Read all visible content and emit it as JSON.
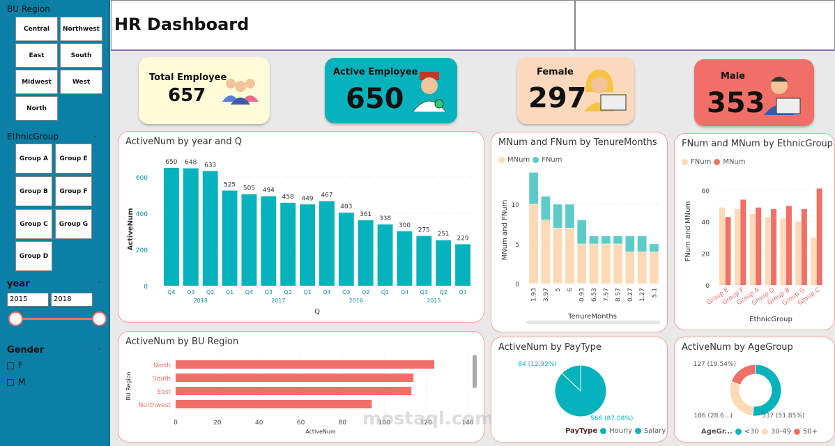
{
  "sidebar": {
    "bu_region": {
      "label": "BU Region",
      "options": [
        "Central",
        "Northwest",
        "East",
        "South",
        "Midwest",
        "West",
        "North"
      ]
    },
    "ethnic": {
      "label": "EthnicGroup",
      "options": [
        "Group A",
        "Group E",
        "Group B",
        "Group F",
        "Group C",
        "Group G",
        "Group D"
      ]
    },
    "year": {
      "label": "year",
      "from": "2015",
      "to": "2018"
    },
    "gender": {
      "label": "Gender",
      "options": [
        "F",
        "M"
      ]
    }
  },
  "header": {
    "title": "HR Dashboard"
  },
  "kpis": [
    {
      "label": "Total Employee",
      "value": "657",
      "color": "#fdfbd8",
      "icon": "team-icon"
    },
    {
      "label": "Active Employee",
      "value": "650",
      "color": "#06b2bb",
      "icon": "doctor-icon"
    },
    {
      "label": "Female",
      "value": "297",
      "color": "#fcd9bc",
      "icon": "woman-laptop-icon"
    },
    {
      "label": "Male",
      "value": "353",
      "color": "#f07068",
      "icon": "man-laptop-icon"
    }
  ],
  "chart_data": [
    {
      "type": "bar",
      "title": "ActiveNum by year and Q",
      "xlabel": "Q",
      "ylabel": "ActiveNum",
      "ylim": [
        0,
        700
      ],
      "yticks": [
        0,
        200,
        400,
        600
      ],
      "grid": true,
      "color": "#06b2bb",
      "categories": [
        "Q4",
        "Q3",
        "Q2",
        "Q1",
        "Q4",
        "Q3",
        "Q2",
        "Q1",
        "Q4",
        "Q3",
        "Q2",
        "Q1",
        "Q4",
        "Q3",
        "Q2",
        "Q1"
      ],
      "groups": [
        "2018",
        "2017",
        "2016",
        "2015"
      ],
      "values": [
        650,
        648,
        633,
        525,
        505,
        494,
        458,
        449,
        467,
        403,
        361,
        338,
        300,
        275,
        251,
        229
      ]
    },
    {
      "type": "bar",
      "stacked": true,
      "title": "MNum and FNum by TenureMonths",
      "xlabel": "TenureMonths",
      "ylabel": "MNum and FNum",
      "ylim": [
        0,
        14
      ],
      "yticks": [
        0,
        5,
        10
      ],
      "legend": "top-left",
      "categories": [
        "1.93",
        "3.97",
        "5",
        "6",
        "0.93",
        "6.53",
        "7.57",
        "8.57",
        "0.27",
        "1.27",
        "5.1"
      ],
      "series": [
        {
          "name": "MNum",
          "color": "#fdd9b5",
          "values": [
            10,
            8,
            7,
            7,
            5,
            5,
            5,
            5,
            4,
            4,
            4
          ]
        },
        {
          "name": "FNum",
          "color": "#5ecbc8",
          "values": [
            4,
            3,
            3,
            3,
            3,
            1,
            1,
            1,
            2,
            2,
            1
          ]
        }
      ]
    },
    {
      "type": "bar",
      "title": "FNum and MNum by EthnicGroup",
      "xlabel": "EthnicGroup",
      "ylabel": "FNum and MNum",
      "ylim": [
        0,
        62
      ],
      "yticks": [
        0,
        20,
        40,
        60
      ],
      "legend": "top-left",
      "categories": [
        "Group E",
        "Group F",
        "Group A",
        "Group D",
        "Group B",
        "Group G",
        "Group C"
      ],
      "series": [
        {
          "name": "FNum",
          "color": "#fdd9b5",
          "values": [
            49,
            48,
            45,
            43,
            42,
            40,
            30
          ]
        },
        {
          "name": "MNum",
          "color": "#f07068",
          "values": [
            43,
            54,
            49,
            48,
            50,
            48,
            61
          ]
        }
      ]
    },
    {
      "type": "bar",
      "orientation": "horizontal",
      "title": "ActiveNum by BU Region",
      "xlabel": "ActiveNum",
      "ylabel": "BU Region",
      "xlim": [
        0,
        140
      ],
      "xticks": [
        0,
        20,
        40,
        60,
        80,
        100,
        120,
        140
      ],
      "color": "#f07068",
      "categories": [
        "North",
        "South",
        "East",
        "Northwest"
      ],
      "values": [
        124,
        114,
        113,
        94
      ]
    },
    {
      "type": "pie",
      "title": "ActiveNum by PayType",
      "legend_title": "PayType",
      "categories": [
        "Hourly",
        "Salary"
      ],
      "values": [
        84,
        566
      ],
      "labels": [
        "84 (12.92%)",
        "566 (87.08%)"
      ],
      "colors": [
        "#06b2bb",
        "#06b2bb"
      ]
    },
    {
      "type": "pie",
      "donut": true,
      "title": "ActiveNum by AgeGroup",
      "legend_title": "AgeGr...",
      "categories": [
        "<30",
        "30-49",
        "50+"
      ],
      "values": [
        337,
        186,
        127
      ],
      "labels": [
        "337 (51.85%)",
        "186 (28.6...)",
        "127 (19.54%)"
      ],
      "colors": [
        "#06b2bb",
        "#fdd9b5",
        "#f07068"
      ]
    }
  ],
  "watermark": "mostaql.com"
}
